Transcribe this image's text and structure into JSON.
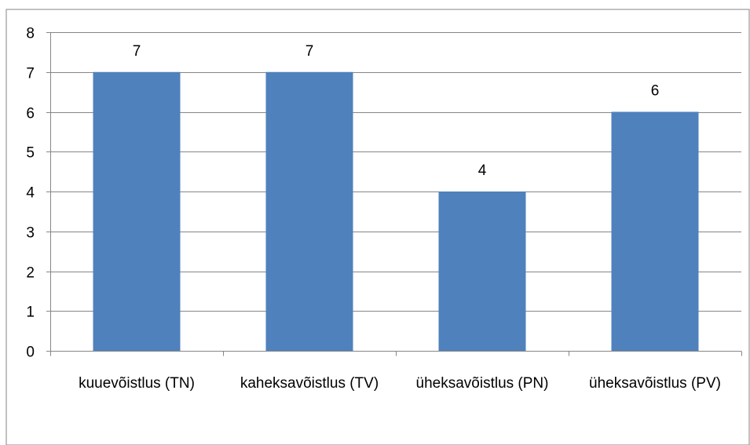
{
  "chart_data": {
    "type": "bar",
    "categories": [
      "kuuevõistlus (TN)",
      "kaheksavõistlus (TV)",
      "üheksavõistlus (PN)",
      "üheksavõistlus (PV)"
    ],
    "values": [
      7,
      7,
      4,
      6
    ],
    "data_labels": [
      "7",
      "7",
      "4",
      "6"
    ],
    "title": "",
    "xlabel": "",
    "ylabel": "",
    "ylim": [
      0,
      8
    ],
    "yticks": [
      0,
      1,
      2,
      3,
      4,
      5,
      6,
      7,
      8
    ],
    "grid": true,
    "legend": "none",
    "colors": {
      "bar": "#4F81BD",
      "grid": "#868686",
      "border": "#868686"
    }
  }
}
